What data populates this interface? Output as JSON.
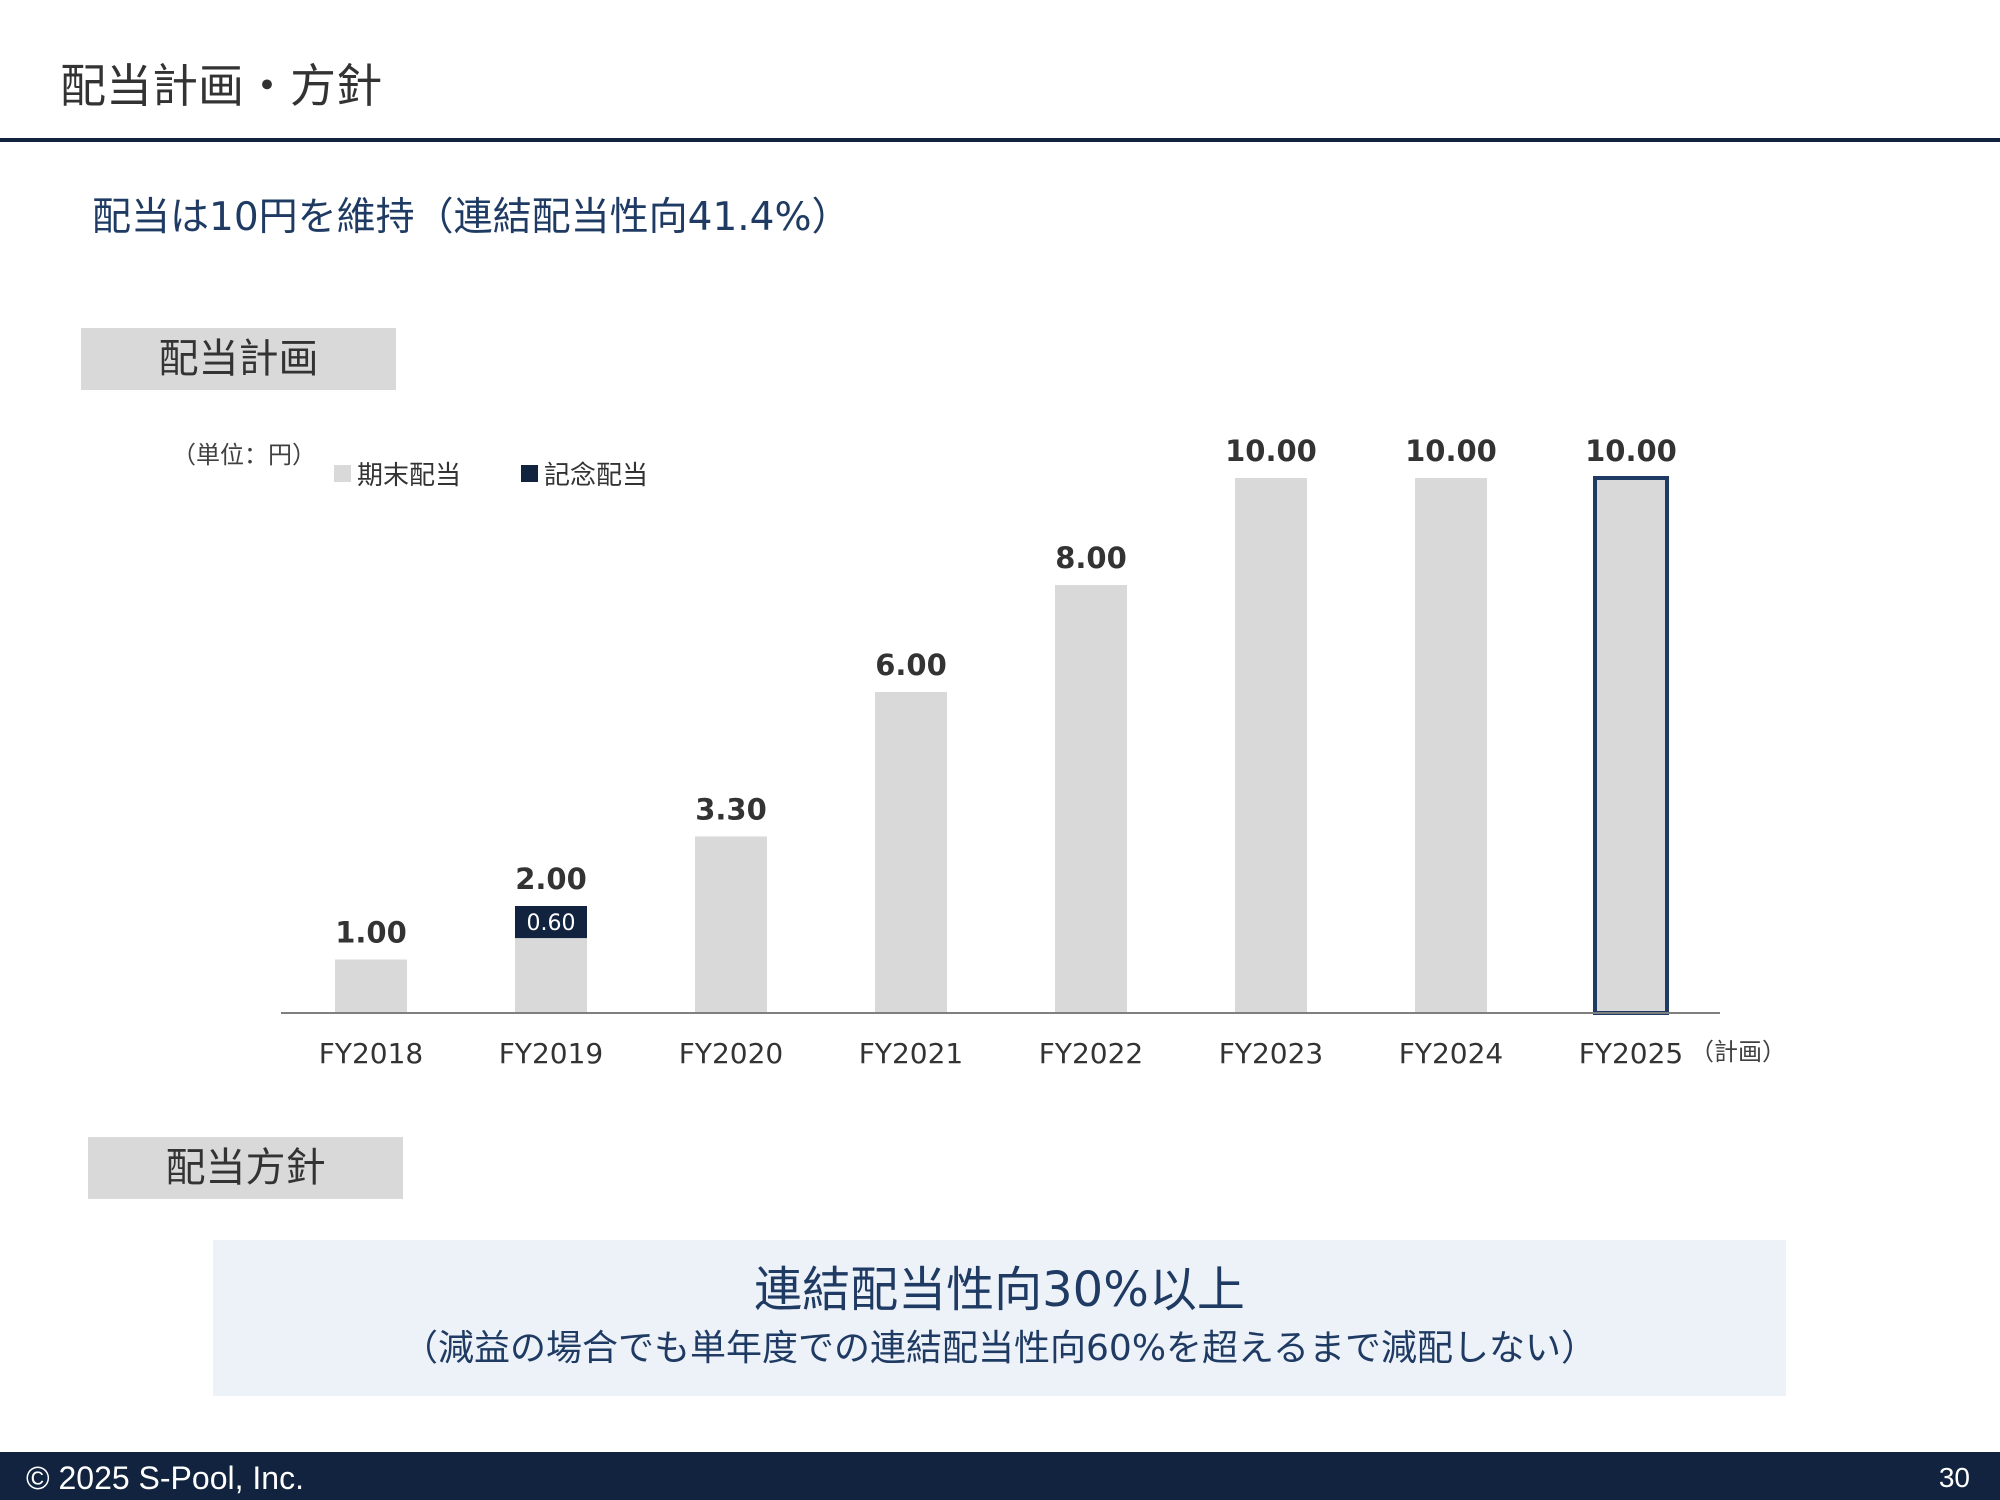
{
  "header": {
    "title": "配当計画・方針"
  },
  "headline": "配当は10円を維持（連結配当性向41.4%）",
  "sections": {
    "plan_label": "配当計画",
    "policy_label": "配当方針"
  },
  "chart_data": {
    "type": "bar",
    "stacked": true,
    "unit_label": "（単位：円）",
    "categories": [
      "FY2018",
      "FY2019",
      "FY2020",
      "FY2021",
      "FY2022",
      "FY2023",
      "FY2024",
      "FY2025"
    ],
    "category_note": "（計画）",
    "series": [
      {
        "name": "期末配当",
        "color": "#d9d9d9",
        "values": [
          1.0,
          1.4,
          3.3,
          6.0,
          8.0,
          10.0,
          10.0,
          10.0
        ]
      },
      {
        "name": "記念配当",
        "color": "#12233f",
        "values": [
          0,
          0.6,
          0,
          0,
          0,
          0,
          0,
          0
        ],
        "labels": [
          "",
          "0.60",
          "",
          "",
          "",
          "",
          "",
          ""
        ]
      }
    ],
    "totals": [
      "1.00",
      "2.00",
      "3.30",
      "6.00",
      "8.00",
      "10.00",
      "10.00",
      "10.00"
    ],
    "highlight_index": 7,
    "highlight_color": "#1f3b63",
    "ylim": [
      0,
      10
    ],
    "grid": false,
    "legend": "top-left"
  },
  "policy": {
    "main": "連結配当性向30%以上",
    "sub": "（減益の場合でも単年度での連結配当性向60%を超えるまで減配しない）"
  },
  "footer": {
    "copyright": "© 2025  S-Pool, Inc.",
    "page": "30"
  }
}
